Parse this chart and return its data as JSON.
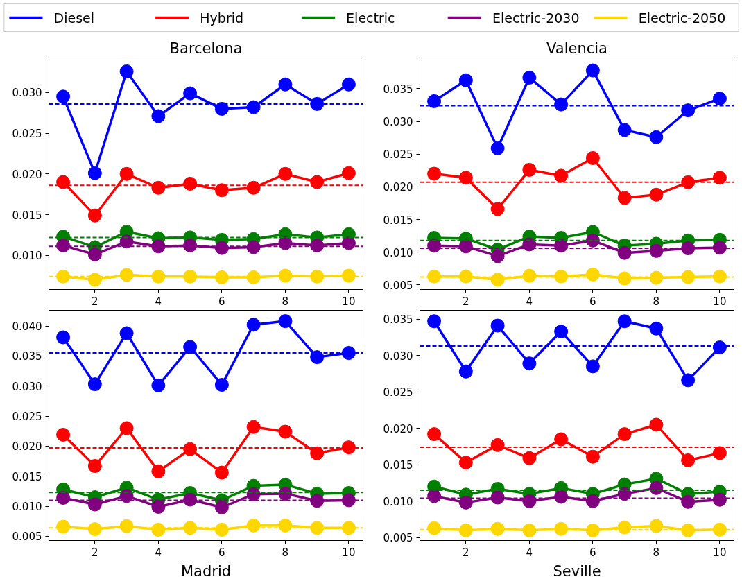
{
  "chart_data": [
    {
      "type": "line",
      "title": "Barcelona",
      "legend": "top",
      "marker": "circle",
      "line_style": "solid",
      "grid": false,
      "x": [
        1,
        2,
        3,
        4,
        5,
        6,
        7,
        8,
        9,
        10
      ],
      "xlim": [
        0.55,
        10.45
      ],
      "xticks": [
        2,
        4,
        6,
        8,
        10
      ],
      "ylim": [
        0.0058,
        0.034
      ],
      "yticks": [
        {
          "value": 0.01,
          "label": "0.010"
        },
        {
          "value": 0.015,
          "label": "0.015"
        },
        {
          "value": 0.02,
          "label": "0.020"
        },
        {
          "value": 0.025,
          "label": "0.025"
        },
        {
          "value": 0.03,
          "label": "0.030"
        }
      ],
      "series": [
        {
          "name": "Diesel",
          "color": "#0000ff",
          "values": [
            0.0295,
            0.0201,
            0.0326,
            0.0271,
            0.0299,
            0.028,
            0.0282,
            0.031,
            0.0286,
            0.031
          ]
        },
        {
          "name": "Hybrid",
          "color": "#ff0000",
          "values": [
            0.019,
            0.0149,
            0.02,
            0.0183,
            0.0188,
            0.018,
            0.0183,
            0.02,
            0.019,
            0.0201
          ]
        },
        {
          "name": "Electric",
          "color": "#008000",
          "values": [
            0.0123,
            0.011,
            0.0129,
            0.0121,
            0.0122,
            0.0119,
            0.012,
            0.0126,
            0.0122,
            0.0126
          ]
        },
        {
          "name": "Electric-2030",
          "color": "#800080",
          "values": [
            0.0112,
            0.0101,
            0.0117,
            0.0111,
            0.0112,
            0.0109,
            0.011,
            0.0115,
            0.0112,
            0.0115
          ]
        },
        {
          "name": "Electric-2050",
          "color": "#ffd700",
          "values": [
            0.0074,
            0.007,
            0.0076,
            0.0074,
            0.0074,
            0.0073,
            0.0073,
            0.0075,
            0.0074,
            0.0075
          ]
        }
      ],
      "ref_lines": [
        {
          "axis": "y",
          "value": 0.0286,
          "color": "#0000ff",
          "line_style": "dashed"
        },
        {
          "axis": "y",
          "value": 0.0186,
          "color": "#ff0000",
          "line_style": "dashed"
        },
        {
          "axis": "y",
          "value": 0.0122,
          "color": "#008000",
          "line_style": "dashed"
        },
        {
          "axis": "y",
          "value": 0.0111,
          "color": "#800080",
          "line_style": "dashed"
        },
        {
          "axis": "y",
          "value": 0.0074,
          "color": "#ffd700",
          "line_style": "dashed"
        }
      ]
    },
    {
      "type": "line",
      "title": "Valencia",
      "marker": "circle",
      "line_style": "solid",
      "grid": false,
      "x": [
        1,
        2,
        3,
        4,
        5,
        6,
        7,
        8,
        9,
        10
      ],
      "xlim": [
        0.55,
        10.45
      ],
      "xticks": [
        2,
        4,
        6,
        8,
        10
      ],
      "ylim": [
        0.0043,
        0.0394
      ],
      "yticks": [
        {
          "value": 0.005,
          "label": "0.005"
        },
        {
          "value": 0.01,
          "label": "0.010"
        },
        {
          "value": 0.015,
          "label": "0.015"
        },
        {
          "value": 0.02,
          "label": "0.020"
        },
        {
          "value": 0.025,
          "label": "0.025"
        },
        {
          "value": 0.03,
          "label": "0.030"
        },
        {
          "value": 0.035,
          "label": "0.035"
        }
      ],
      "series": [
        {
          "color": "#0000ff",
          "values": [
            0.0331,
            0.0363,
            0.0259,
            0.0367,
            0.0326,
            0.0378,
            0.0287,
            0.0276,
            0.0317,
            0.0335
          ]
        },
        {
          "color": "#ff0000",
          "values": [
            0.022,
            0.0214,
            0.0166,
            0.0226,
            0.0217,
            0.0244,
            0.0183,
            0.0188,
            0.0207,
            0.0214
          ]
        },
        {
          "color": "#008000",
          "values": [
            0.0122,
            0.0121,
            0.0104,
            0.0124,
            0.0122,
            0.0131,
            0.011,
            0.0113,
            0.0118,
            0.0119
          ]
        },
        {
          "color": "#800080",
          "values": [
            0.011,
            0.0109,
            0.0094,
            0.0112,
            0.011,
            0.0118,
            0.0099,
            0.0102,
            0.0106,
            0.0107
          ]
        },
        {
          "color": "#ffd700",
          "values": [
            0.0063,
            0.0063,
            0.0058,
            0.0064,
            0.0063,
            0.0066,
            0.006,
            0.0061,
            0.0062,
            0.0063
          ]
        }
      ],
      "ref_lines": [
        {
          "axis": "y",
          "value": 0.0324,
          "color": "#0000ff",
          "line_style": "dashed"
        },
        {
          "axis": "y",
          "value": 0.0207,
          "color": "#ff0000",
          "line_style": "dashed"
        },
        {
          "axis": "y",
          "value": 0.0118,
          "color": "#008000",
          "line_style": "dashed"
        },
        {
          "axis": "y",
          "value": 0.0106,
          "color": "#800080",
          "line_style": "dashed"
        },
        {
          "axis": "y",
          "value": 0.0062,
          "color": "#ffd700",
          "line_style": "dashed"
        }
      ]
    },
    {
      "type": "line",
      "title": "Madrid",
      "marker": "circle",
      "line_style": "solid",
      "grid": false,
      "x": [
        1,
        2,
        3,
        4,
        5,
        6,
        7,
        8,
        9,
        10
      ],
      "xlim": [
        0.55,
        10.45
      ],
      "xticks": [
        2,
        4,
        6,
        8,
        10
      ],
      "ylim": [
        0.0043,
        0.0426
      ],
      "yticks": [
        {
          "value": 0.005,
          "label": "0.005"
        },
        {
          "value": 0.01,
          "label": "0.010"
        },
        {
          "value": 0.015,
          "label": "0.015"
        },
        {
          "value": 0.02,
          "label": "0.020"
        },
        {
          "value": 0.025,
          "label": "0.025"
        },
        {
          "value": 0.03,
          "label": "0.030"
        },
        {
          "value": 0.035,
          "label": "0.035"
        },
        {
          "value": 0.04,
          "label": "0.040"
        }
      ],
      "series": [
        {
          "color": "#0000ff",
          "values": [
            0.0381,
            0.0303,
            0.0388,
            0.0301,
            0.0365,
            0.0302,
            0.0402,
            0.0408,
            0.0348,
            0.0355
          ]
        },
        {
          "color": "#ff0000",
          "values": [
            0.0219,
            0.0167,
            0.023,
            0.0158,
            0.0195,
            0.0156,
            0.0232,
            0.0224,
            0.0188,
            0.0198
          ]
        },
        {
          "color": "#008000",
          "values": [
            0.0128,
            0.0115,
            0.0131,
            0.0111,
            0.0122,
            0.011,
            0.0134,
            0.0136,
            0.0121,
            0.0122
          ]
        },
        {
          "color": "#800080",
          "values": [
            0.0114,
            0.0103,
            0.0117,
            0.0099,
            0.0111,
            0.0098,
            0.012,
            0.0121,
            0.0109,
            0.011
          ]
        },
        {
          "color": "#ffd700",
          "values": [
            0.0066,
            0.0062,
            0.0067,
            0.0061,
            0.0064,
            0.0061,
            0.0068,
            0.0068,
            0.0064,
            0.0064
          ]
        }
      ],
      "ref_lines": [
        {
          "axis": "y",
          "value": 0.0355,
          "color": "#0000ff",
          "line_style": "dashed"
        },
        {
          "axis": "y",
          "value": 0.0197,
          "color": "#ff0000",
          "line_style": "dashed"
        },
        {
          "axis": "y",
          "value": 0.0123,
          "color": "#008000",
          "line_style": "dashed"
        },
        {
          "axis": "y",
          "value": 0.011,
          "color": "#800080",
          "line_style": "dashed"
        },
        {
          "axis": "y",
          "value": 0.0064,
          "color": "#ffd700",
          "line_style": "dashed"
        }
      ]
    },
    {
      "type": "line",
      "title": "Seville",
      "marker": "circle",
      "line_style": "solid",
      "grid": false,
      "x": [
        1,
        2,
        3,
        4,
        5,
        6,
        7,
        8,
        9,
        10
      ],
      "xlim": [
        0.55,
        10.45
      ],
      "xticks": [
        2,
        4,
        6,
        8,
        10
      ],
      "ylim": [
        0.0046,
        0.0362
      ],
      "yticks": [
        {
          "value": 0.005,
          "label": "0.005"
        },
        {
          "value": 0.01,
          "label": "0.010"
        },
        {
          "value": 0.015,
          "label": "0.015"
        },
        {
          "value": 0.02,
          "label": "0.020"
        },
        {
          "value": 0.025,
          "label": "0.025"
        },
        {
          "value": 0.03,
          "label": "0.030"
        },
        {
          "value": 0.035,
          "label": "0.035"
        }
      ],
      "series": [
        {
          "color": "#0000ff",
          "values": [
            0.0347,
            0.0278,
            0.0341,
            0.0289,
            0.0333,
            0.0285,
            0.0347,
            0.0337,
            0.0266,
            0.0311
          ]
        },
        {
          "color": "#ff0000",
          "values": [
            0.0192,
            0.0153,
            0.0177,
            0.0159,
            0.0185,
            0.0161,
            0.0192,
            0.0205,
            0.0156,
            0.0166
          ]
        },
        {
          "color": "#008000",
          "values": [
            0.012,
            0.0109,
            0.0117,
            0.011,
            0.0118,
            0.011,
            0.0123,
            0.0131,
            0.011,
            0.0113
          ]
        },
        {
          "color": "#800080",
          "values": [
            0.0107,
            0.0098,
            0.0105,
            0.01,
            0.0106,
            0.01,
            0.011,
            0.0118,
            0.0099,
            0.0102
          ]
        },
        {
          "color": "#ffd700",
          "values": [
            0.0063,
            0.006,
            0.0062,
            0.006,
            0.0062,
            0.006,
            0.0064,
            0.0066,
            0.006,
            0.0061
          ]
        }
      ],
      "ref_lines": [
        {
          "axis": "y",
          "value": 0.0313,
          "color": "#0000ff",
          "line_style": "dashed"
        },
        {
          "axis": "y",
          "value": 0.0174,
          "color": "#ff0000",
          "line_style": "dashed"
        },
        {
          "axis": "y",
          "value": 0.0115,
          "color": "#008000",
          "line_style": "dashed"
        },
        {
          "axis": "y",
          "value": 0.0104,
          "color": "#800080",
          "line_style": "dashed"
        },
        {
          "axis": "y",
          "value": 0.0061,
          "color": "#ffd700",
          "line_style": "dashed"
        }
      ]
    }
  ]
}
